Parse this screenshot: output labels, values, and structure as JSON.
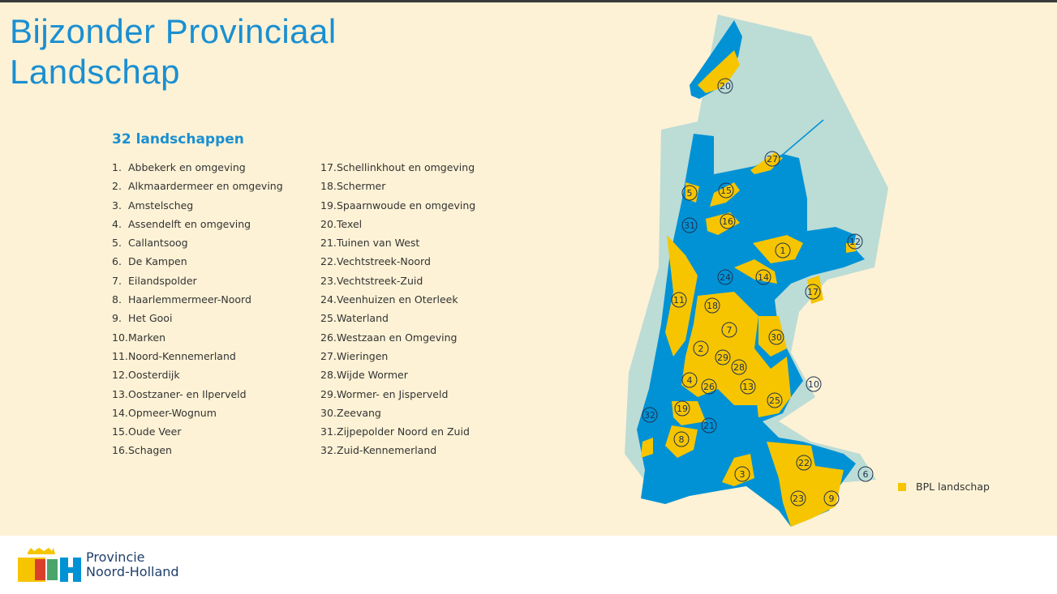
{
  "title_line1": "Bijzonder Provinciaal",
  "title_line2": "Landschap",
  "subtitle": "32 landschappen",
  "landscapes": [
    {
      "n": "1.",
      "name": "Abbekerk en omgeving"
    },
    {
      "n": "2.",
      "name": "Alkmaardermeer en omgeving"
    },
    {
      "n": "3.",
      "name": "Amstelscheg"
    },
    {
      "n": "4.",
      "name": "Assendelft en omgeving"
    },
    {
      "n": "5.",
      "name": "Callantsoog"
    },
    {
      "n": "6.",
      "name": "De Kampen"
    },
    {
      "n": "7.",
      "name": "Eilandspolder"
    },
    {
      "n": "8.",
      "name": "Haarlemmermeer-Noord"
    },
    {
      "n": "9.",
      "name": "Het Gooi"
    },
    {
      "n": "10.",
      "name": "Marken"
    },
    {
      "n": "11.",
      "name": "Noord-Kennemerland"
    },
    {
      "n": "12.",
      "name": "Oosterdijk"
    },
    {
      "n": "13.",
      "name": "Oostzaner- en Ilperveld"
    },
    {
      "n": "14.",
      "name": "Opmeer-Wognum"
    },
    {
      "n": "15.",
      "name": "Oude Veer"
    },
    {
      "n": "16.",
      "name": "Schagen"
    },
    {
      "n": "17.",
      "name": "Schellinkhout en omgeving"
    },
    {
      "n": "18.",
      "name": "Schermer"
    },
    {
      "n": "19.",
      "name": "Spaarnwoude en omgeving"
    },
    {
      "n": "20.",
      "name": "Texel"
    },
    {
      "n": "21.",
      "name": "Tuinen van West"
    },
    {
      "n": "22.",
      "name": "Vechtstreek-Noord"
    },
    {
      "n": "23.",
      "name": "Vechtstreek-Zuid"
    },
    {
      "n": "24.",
      "name": "Veenhuizen en Oterleek"
    },
    {
      "n": "25.",
      "name": "Waterland"
    },
    {
      "n": "26.",
      "name": "Westzaan en Omgeving"
    },
    {
      "n": "27.",
      "name": "Wieringen"
    },
    {
      "n": "28.",
      "name": "Wijde Wormer"
    },
    {
      "n": "29.",
      "name": "Wormer- en Jisperveld"
    },
    {
      "n": "30.",
      "name": "Zeevang"
    },
    {
      "n": "31.",
      "name": "Zijpepolder Noord en Zuid"
    },
    {
      "n": "32.",
      "name": "Zuid-Kennemerland"
    }
  ],
  "map": {
    "markers": [
      "20",
      "27",
      "5",
      "15",
      "16",
      "31",
      "1",
      "12",
      "24",
      "14",
      "17",
      "11",
      "18",
      "7",
      "30",
      "2",
      "29",
      "28",
      "4",
      "26",
      "13",
      "25",
      "10",
      "19",
      "32",
      "21",
      "8",
      "3",
      "22",
      "6",
      "23",
      "9"
    ],
    "legend_label": "BPL landschap",
    "colors": {
      "land": "#0092d5",
      "water": "#bcdcd6",
      "bpl": "#f6c500",
      "background": "#fdf2d6"
    }
  },
  "footer": {
    "logo_line1": "Provincie",
    "logo_line2": "Noord-Holland",
    "logo_letters": "NH"
  }
}
